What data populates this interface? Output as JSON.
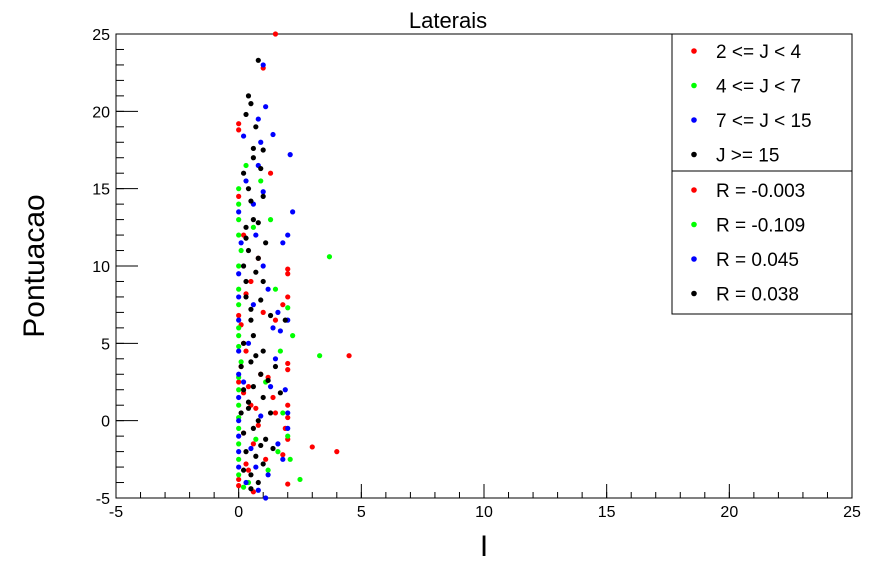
{
  "chart_data": {
    "type": "scatter",
    "title": "Laterais",
    "xlabel": "I",
    "ylabel": "Pontuacao",
    "xlim": [
      -5,
      25
    ],
    "ylim": [
      -5,
      25
    ],
    "xticks": [
      -5,
      0,
      5,
      10,
      15,
      20,
      25
    ],
    "yticks": [
      -5,
      0,
      5,
      10,
      15,
      20,
      25
    ],
    "grid": false,
    "legend_position": "top-right",
    "series": [
      {
        "name": "2 <= J < 4",
        "color": "#ff0000",
        "points": [
          [
            1.5,
            25.0
          ],
          [
            1.0,
            22.8
          ],
          [
            0.0,
            19.2
          ],
          [
            0.0,
            18.8
          ],
          [
            1.3,
            16.0
          ],
          [
            2.0,
            9.8
          ],
          [
            2.0,
            9.5
          ],
          [
            1.8,
            7.5
          ],
          [
            1.0,
            7.0
          ],
          [
            2.0,
            8.0
          ],
          [
            1.5,
            6.5
          ],
          [
            0.0,
            6.8
          ],
          [
            0.1,
            6.2
          ],
          [
            0.2,
            5.0
          ],
          [
            4.5,
            4.2
          ],
          [
            2.0,
            3.7
          ],
          [
            2.0,
            3.3
          ],
          [
            0.0,
            2.5
          ],
          [
            0.2,
            1.8
          ],
          [
            2.0,
            1.0
          ],
          [
            1.5,
            0.5
          ],
          [
            2.0,
            0.2
          ],
          [
            0.8,
            -0.3
          ],
          [
            1.9,
            -0.5
          ],
          [
            2.0,
            -1.2
          ],
          [
            3.0,
            -1.7
          ],
          [
            4.0,
            -2.0
          ],
          [
            1.8,
            -2.2
          ],
          [
            0.3,
            -2.8
          ],
          [
            0.0,
            -3.8
          ],
          [
            0.0,
            -4.2
          ],
          [
            2.0,
            -4.1
          ],
          [
            0.6,
            -4.6
          ],
          [
            0.5,
            1.0
          ],
          [
            0.4,
            2.2
          ],
          [
            0.9,
            3.0
          ],
          [
            0.2,
            -0.8
          ],
          [
            0.7,
            0.8
          ],
          [
            0.1,
            3.5
          ],
          [
            0.3,
            4.5
          ],
          [
            1.2,
            2.8
          ],
          [
            0.6,
            -1.5
          ],
          [
            1.1,
            -2.5
          ],
          [
            0.4,
            -3.2
          ],
          [
            0.5,
            9.0
          ],
          [
            0.8,
            10.5
          ],
          [
            0.2,
            12.0
          ],
          [
            0.0,
            14.5
          ],
          [
            0.3,
            8.2
          ],
          [
            1.4,
            1.5
          ]
        ]
      },
      {
        "name": "4 <= J < 7",
        "color": "#00ff00",
        "points": [
          [
            3.7,
            10.6
          ],
          [
            3.3,
            4.2
          ],
          [
            2.2,
            5.5
          ],
          [
            2.0,
            7.3
          ],
          [
            2.5,
            -3.8
          ],
          [
            2.1,
            -2.5
          ],
          [
            2.0,
            -1.0
          ],
          [
            0.0,
            15.0
          ],
          [
            0.0,
            14.0
          ],
          [
            0.0,
            13.0
          ],
          [
            0.0,
            12.0
          ],
          [
            0.1,
            11.0
          ],
          [
            0.0,
            10.0
          ],
          [
            0.0,
            8.5
          ],
          [
            0.0,
            7.5
          ],
          [
            0.0,
            6.0
          ],
          [
            0.0,
            5.5
          ],
          [
            0.0,
            4.8
          ],
          [
            0.1,
            3.8
          ],
          [
            0.0,
            2.8
          ],
          [
            0.0,
            2.0
          ],
          [
            0.0,
            1.0
          ],
          [
            0.0,
            0.2
          ],
          [
            0.0,
            -0.5
          ],
          [
            0.0,
            -1.5
          ],
          [
            0.0,
            -2.5
          ],
          [
            0.0,
            -3.5
          ],
          [
            0.2,
            -4.3
          ],
          [
            0.4,
            -4.0
          ],
          [
            1.2,
            -3.2
          ],
          [
            1.6,
            -2.0
          ],
          [
            1.8,
            0.5
          ],
          [
            0.7,
            -1.2
          ],
          [
            1.1,
            2.5
          ],
          [
            1.7,
            4.5
          ],
          [
            0.6,
            12.5
          ],
          [
            0.9,
            15.5
          ],
          [
            0.3,
            16.5
          ],
          [
            1.5,
            8.5
          ],
          [
            1.3,
            13.0
          ]
        ]
      },
      {
        "name": "7 <= J < 15",
        "color": "#0000ff",
        "points": [
          [
            1.0,
            23.0
          ],
          [
            1.1,
            20.3
          ],
          [
            0.8,
            19.5
          ],
          [
            0.9,
            18.0
          ],
          [
            1.4,
            18.5
          ],
          [
            2.1,
            17.2
          ],
          [
            0.8,
            16.5
          ],
          [
            2.2,
            13.5
          ],
          [
            1.8,
            11.5
          ],
          [
            2.0,
            12.0
          ],
          [
            0.2,
            18.4
          ],
          [
            1.6,
            7.0
          ],
          [
            1.7,
            5.8
          ],
          [
            2.0,
            6.5
          ],
          [
            1.9,
            2.0
          ],
          [
            2.0,
            0.5
          ],
          [
            2.0,
            -0.5
          ],
          [
            1.8,
            -2.5
          ],
          [
            1.2,
            -3.5
          ],
          [
            1.1,
            -5.0
          ],
          [
            0.8,
            -4.5
          ],
          [
            0.3,
            -4.0
          ],
          [
            0.0,
            -1.0
          ],
          [
            0.0,
            -2.0
          ],
          [
            0.0,
            -3.0
          ],
          [
            0.0,
            0.0
          ],
          [
            0.0,
            1.5
          ],
          [
            0.0,
            3.0
          ],
          [
            0.0,
            4.5
          ],
          [
            0.0,
            6.5
          ],
          [
            0.0,
            8.0
          ],
          [
            0.0,
            9.5
          ],
          [
            0.1,
            11.5
          ],
          [
            0.0,
            13.5
          ],
          [
            0.3,
            15.5
          ],
          [
            0.6,
            14.0
          ],
          [
            0.7,
            12.0
          ],
          [
            1.0,
            10.0
          ],
          [
            1.2,
            8.5
          ],
          [
            1.4,
            6.0
          ],
          [
            1.5,
            4.0
          ],
          [
            1.3,
            2.2
          ],
          [
            0.9,
            0.3
          ],
          [
            0.5,
            -1.8
          ],
          [
            0.7,
            -3.0
          ],
          [
            1.6,
            -1.5
          ],
          [
            0.4,
            5.0
          ],
          [
            0.6,
            7.5
          ],
          [
            0.2,
            2.5
          ],
          [
            1.0,
            14.8
          ]
        ]
      },
      {
        "name": "J >= 15",
        "color": "#000000",
        "points": [
          [
            0.8,
            23.3
          ],
          [
            0.4,
            21.0
          ],
          [
            0.5,
            20.5
          ],
          [
            0.3,
            19.8
          ],
          [
            0.7,
            19.0
          ],
          [
            0.6,
            17.6
          ],
          [
            1.0,
            17.5
          ],
          [
            0.2,
            16.0
          ],
          [
            0.9,
            16.3
          ],
          [
            0.5,
            14.2
          ],
          [
            1.0,
            14.5
          ],
          [
            0.3,
            12.5
          ],
          [
            0.8,
            12.8
          ],
          [
            0.4,
            11.0
          ],
          [
            1.1,
            11.5
          ],
          [
            0.2,
            10.0
          ],
          [
            0.7,
            9.6
          ],
          [
            1.0,
            9.0
          ],
          [
            0.3,
            8.0
          ],
          [
            0.9,
            7.8
          ],
          [
            1.9,
            6.5
          ],
          [
            0.5,
            6.5
          ],
          [
            1.3,
            6.8
          ],
          [
            0.2,
            5.0
          ],
          [
            0.6,
            5.5
          ],
          [
            1.0,
            4.5
          ],
          [
            0.1,
            3.5
          ],
          [
            0.5,
            3.8
          ],
          [
            0.9,
            3.0
          ],
          [
            1.5,
            3.5
          ],
          [
            0.2,
            2.0
          ],
          [
            0.6,
            2.2
          ],
          [
            1.0,
            1.5
          ],
          [
            1.7,
            1.8
          ],
          [
            0.1,
            0.5
          ],
          [
            0.4,
            0.8
          ],
          [
            0.8,
            0.0
          ],
          [
            1.3,
            0.5
          ],
          [
            0.2,
            -0.8
          ],
          [
            0.6,
            -0.5
          ],
          [
            1.1,
            -1.2
          ],
          [
            0.3,
            -2.0
          ],
          [
            0.7,
            -2.3
          ],
          [
            1.0,
            -2.8
          ],
          [
            0.2,
            -3.2
          ],
          [
            0.5,
            -3.5
          ],
          [
            0.8,
            -4.0
          ],
          [
            1.4,
            -1.8
          ],
          [
            0.4,
            15.0
          ],
          [
            0.6,
            13.0
          ],
          [
            0.8,
            10.5
          ],
          [
            0.3,
            9.0
          ],
          [
            0.5,
            7.2
          ],
          [
            0.7,
            4.2
          ],
          [
            0.4,
            1.2
          ],
          [
            0.9,
            -1.6
          ],
          [
            1.2,
            2.6
          ],
          [
            0.5,
            -4.4
          ],
          [
            0.3,
            11.8
          ],
          [
            0.6,
            17.0
          ]
        ]
      }
    ],
    "legend_entries": [
      {
        "label": "2 <= J < 4",
        "color": "#ff0000"
      },
      {
        "label": "4 <= J < 7",
        "color": "#00ff00"
      },
      {
        "label": "7 <= J < 15",
        "color": "#0000ff"
      },
      {
        "label": "J >= 15",
        "color": "#000000"
      }
    ],
    "correlation_entries": [
      {
        "label": "R = -0.003",
        "color": "#ff0000"
      },
      {
        "label": "R = -0.109",
        "color": "#00ff00"
      },
      {
        "label": "R = 0.045",
        "color": "#0000ff"
      },
      {
        "label": "R = 0.038",
        "color": "#000000"
      }
    ]
  }
}
